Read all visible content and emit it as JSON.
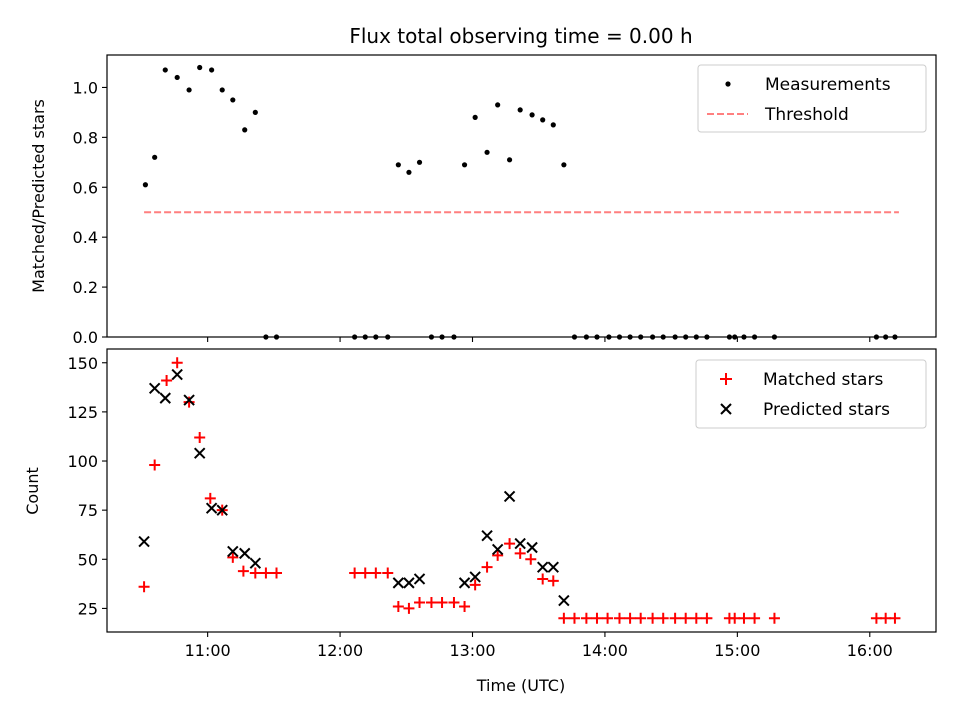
{
  "chart_data": [
    {
      "type": "scatter",
      "title": "Flux total observing time = 0.00 h",
      "xlabel": "",
      "ylabel": "Matched/Predicted stars",
      "xlim": [
        10.24,
        16.5
      ],
      "ylim": [
        0.0,
        1.13
      ],
      "yticks": [
        0.0,
        0.2,
        0.4,
        0.6,
        0.8,
        1.0
      ],
      "ytick_labels": [
        "0.0",
        "0.2",
        "0.4",
        "0.6",
        "0.8",
        "1.0"
      ],
      "xticks": [
        11,
        12,
        13,
        14,
        15,
        16
      ],
      "legend_position": "top-right",
      "series": [
        {
          "name": "Measurements",
          "marker": "dot",
          "color": "#000000",
          "points": [
            [
              10.53,
              0.61
            ],
            [
              10.6,
              0.72
            ],
            [
              10.68,
              1.07
            ],
            [
              10.77,
              1.04
            ],
            [
              10.86,
              0.99
            ],
            [
              10.94,
              1.08
            ],
            [
              11.03,
              1.07
            ],
            [
              11.11,
              0.99
            ],
            [
              11.19,
              0.95
            ],
            [
              11.28,
              0.83
            ],
            [
              11.36,
              0.9
            ],
            [
              11.44,
              0.0
            ],
            [
              11.52,
              0.0
            ],
            [
              12.11,
              0.0
            ],
            [
              12.19,
              0.0
            ],
            [
              12.27,
              0.0
            ],
            [
              12.36,
              0.0
            ],
            [
              12.44,
              0.69
            ],
            [
              12.52,
              0.66
            ],
            [
              12.6,
              0.7
            ],
            [
              12.69,
              0.0
            ],
            [
              12.77,
              0.0
            ],
            [
              12.86,
              0.0
            ],
            [
              12.94,
              0.69
            ],
            [
              13.02,
              0.88
            ],
            [
              13.11,
              0.74
            ],
            [
              13.19,
              0.93
            ],
            [
              13.28,
              0.71
            ],
            [
              13.36,
              0.91
            ],
            [
              13.45,
              0.89
            ],
            [
              13.53,
              0.87
            ],
            [
              13.61,
              0.85
            ],
            [
              13.69,
              0.69
            ],
            [
              13.77,
              0.0
            ],
            [
              13.86,
              0.0
            ],
            [
              13.94,
              0.0
            ],
            [
              14.03,
              0.0
            ],
            [
              14.11,
              0.0
            ],
            [
              14.19,
              0.0
            ],
            [
              14.27,
              0.0
            ],
            [
              14.36,
              0.0
            ],
            [
              14.44,
              0.0
            ],
            [
              14.53,
              0.0
            ],
            [
              14.61,
              0.0
            ],
            [
              14.69,
              0.0
            ],
            [
              14.77,
              0.0
            ],
            [
              14.94,
              0.0
            ],
            [
              14.98,
              0.0
            ],
            [
              15.05,
              0.0
            ],
            [
              15.13,
              0.0
            ],
            [
              15.28,
              0.0
            ],
            [
              16.05,
              0.0
            ],
            [
              16.12,
              0.0
            ],
            [
              16.19,
              0.0
            ]
          ]
        },
        {
          "name": "Threshold",
          "marker": "dashed-line",
          "color": "#ff7f7f",
          "points": [
            [
              10.52,
              0.5
            ],
            [
              16.22,
              0.5
            ]
          ]
        }
      ]
    },
    {
      "type": "scatter",
      "title": "",
      "xlabel": "Time (UTC)",
      "ylabel": "Count",
      "xlim": [
        10.24,
        16.5
      ],
      "ylim": [
        13,
        157
      ],
      "yticks": [
        25,
        50,
        75,
        100,
        125,
        150
      ],
      "ytick_labels": [
        "25",
        "50",
        "75",
        "100",
        "125",
        "150"
      ],
      "xticks": [
        11,
        12,
        13,
        14,
        15,
        16
      ],
      "xtick_labels": [
        "11:00",
        "12:00",
        "13:00",
        "14:00",
        "15:00",
        "16:00"
      ],
      "legend_position": "top-right",
      "series": [
        {
          "name": "Matched stars",
          "marker": "plus",
          "color": "#ff0000",
          "points": [
            [
              10.52,
              36
            ],
            [
              10.6,
              98
            ],
            [
              10.69,
              141
            ],
            [
              10.77,
              150
            ],
            [
              10.86,
              130
            ],
            [
              10.94,
              112
            ],
            [
              11.02,
              81
            ],
            [
              11.11,
              75
            ],
            [
              11.19,
              51
            ],
            [
              11.27,
              44
            ],
            [
              11.36,
              43
            ],
            [
              11.44,
              43
            ],
            [
              11.52,
              43
            ],
            [
              12.11,
              43
            ],
            [
              12.19,
              43
            ],
            [
              12.27,
              43
            ],
            [
              12.36,
              43
            ],
            [
              12.44,
              26
            ],
            [
              12.52,
              25
            ],
            [
              12.6,
              28
            ],
            [
              12.69,
              28
            ],
            [
              12.77,
              28
            ],
            [
              12.86,
              28
            ],
            [
              12.94,
              26
            ],
            [
              13.02,
              37
            ],
            [
              13.11,
              46
            ],
            [
              13.19,
              52
            ],
            [
              13.28,
              58
            ],
            [
              13.36,
              53
            ],
            [
              13.44,
              50
            ],
            [
              13.53,
              40
            ],
            [
              13.61,
              39
            ],
            [
              13.69,
              20
            ],
            [
              13.77,
              20
            ],
            [
              13.86,
              20
            ],
            [
              13.94,
              20
            ],
            [
              14.02,
              20
            ],
            [
              14.11,
              20
            ],
            [
              14.19,
              20
            ],
            [
              14.27,
              20
            ],
            [
              14.36,
              20
            ],
            [
              14.44,
              20
            ],
            [
              14.53,
              20
            ],
            [
              14.61,
              20
            ],
            [
              14.69,
              20
            ],
            [
              14.77,
              20
            ],
            [
              14.94,
              20
            ],
            [
              14.98,
              20
            ],
            [
              15.05,
              20
            ],
            [
              15.13,
              20
            ],
            [
              15.28,
              20
            ],
            [
              16.05,
              20
            ],
            [
              16.12,
              20
            ],
            [
              16.19,
              20
            ]
          ]
        },
        {
          "name": "Predicted stars",
          "marker": "x",
          "color": "#000000",
          "points": [
            [
              10.52,
              59
            ],
            [
              10.6,
              137
            ],
            [
              10.68,
              132
            ],
            [
              10.77,
              144
            ],
            [
              10.86,
              131
            ],
            [
              10.94,
              104
            ],
            [
              11.03,
              76
            ],
            [
              11.11,
              75
            ],
            [
              11.19,
              54
            ],
            [
              11.28,
              53
            ],
            [
              11.36,
              48
            ],
            [
              12.44,
              38
            ],
            [
              12.52,
              38
            ],
            [
              12.6,
              40
            ],
            [
              12.94,
              38
            ],
            [
              13.02,
              41
            ],
            [
              13.11,
              62
            ],
            [
              13.19,
              55
            ],
            [
              13.28,
              82
            ],
            [
              13.36,
              58
            ],
            [
              13.45,
              56
            ],
            [
              13.53,
              46
            ],
            [
              13.61,
              46
            ],
            [
              13.69,
              29
            ]
          ]
        }
      ]
    }
  ]
}
